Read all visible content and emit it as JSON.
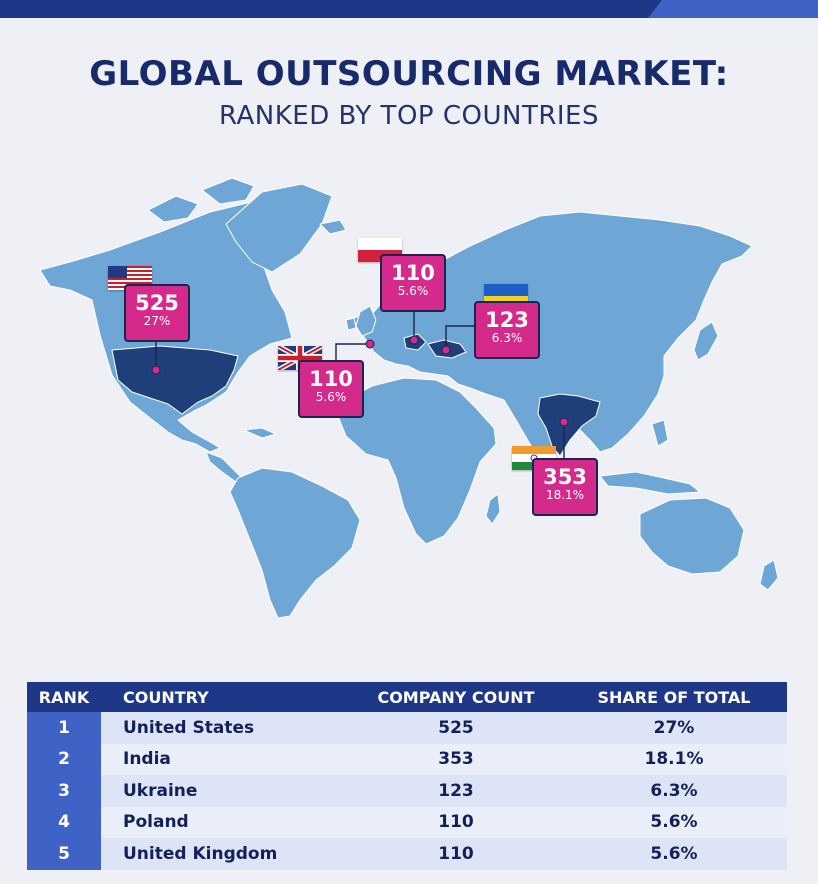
{
  "header": {
    "title": "GLOBAL OUTSOURCING MARKET:",
    "subtitle": "RANKED BY TOP COUNTRIES"
  },
  "colors": {
    "ocean": "#eef0f6",
    "land": "#6ea7d6",
    "land_border": "#ffffff",
    "highlight_country": "#1e3f7a",
    "marker_fill": "#d42a8b",
    "marker_border": "#1a2550",
    "header_bar": "#1e3787",
    "rank_column": "#3f62c6"
  },
  "markers": [
    {
      "country": "United States",
      "count": "525",
      "share": "27%",
      "flag": "us-flag-icon"
    },
    {
      "country": "Poland",
      "count": "110",
      "share": "5.6%",
      "flag": "poland-flag-icon"
    },
    {
      "country": "Ukraine",
      "count": "123",
      "share": "6.3%",
      "flag": "ukraine-flag-icon"
    },
    {
      "country": "United Kingdom",
      "count": "110",
      "share": "5.6%",
      "flag": "uk-flag-icon"
    },
    {
      "country": "India",
      "count": "353",
      "share": "18.1%",
      "flag": "india-flag-icon"
    }
  ],
  "table": {
    "headers": [
      "RANK",
      "COUNTRY",
      "COMPANY COUNT",
      "SHARE OF TOTAL"
    ],
    "rows": [
      {
        "rank": "1",
        "country": "United States",
        "count": "525",
        "share": "27%"
      },
      {
        "rank": "2",
        "country": "India",
        "count": "353",
        "share": "18.1%"
      },
      {
        "rank": "3",
        "country": "Ukraine",
        "count": "123",
        "share": "6.3%"
      },
      {
        "rank": "4",
        "country": "Poland",
        "count": "110",
        "share": "5.6%"
      },
      {
        "rank": "5",
        "country": "United Kingdom",
        "count": "110",
        "share": "5.6%"
      }
    ]
  }
}
